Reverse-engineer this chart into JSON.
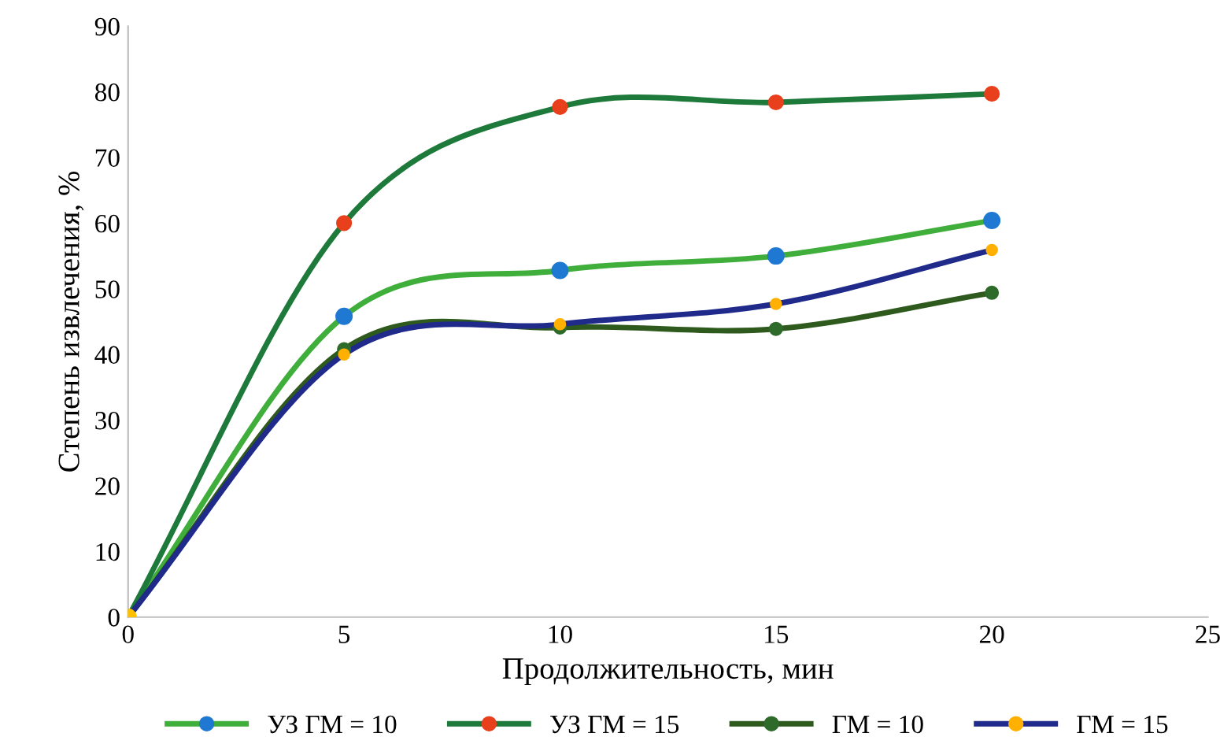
{
  "chart_data": {
    "type": "line",
    "xlabel": "Продолжительность, мин",
    "ylabel": "Степень извлечения, %",
    "x": [
      0,
      5,
      10,
      15,
      20
    ],
    "xlim": [
      0,
      25
    ],
    "xticks": [
      0,
      5,
      10,
      15,
      20,
      25
    ],
    "ylim": [
      0,
      90
    ],
    "yticks": [
      0,
      10,
      20,
      30,
      40,
      50,
      60,
      70,
      80,
      90
    ],
    "grid": false,
    "legend": "bottom",
    "marker": "circle",
    "line_style": "solid",
    "series": [
      {
        "name": "УЗ ГМ = 10",
        "color": "#3fae3a",
        "colors": [
          "#ffc000",
          "#1f78d1",
          "#1f78d1",
          "#1f78d1",
          "#1f78d1"
        ],
        "values": [
          0,
          45.8,
          52.8,
          55,
          60.4
        ]
      },
      {
        "name": "УЗ ГМ = 15",
        "color": "#1e7a3a",
        "colors": [
          "#ffc000",
          "#e8401c",
          "#e8401c",
          "#e8401c",
          "#e8401c"
        ],
        "values": [
          0,
          60,
          77.7,
          78.4,
          79.7
        ]
      },
      {
        "name": "ГМ = 10",
        "color": "#2f5a1e",
        "colors": [
          "#ffc000",
          "#2e6b2a",
          "#2e6b2a",
          "#2e6b2a",
          "#2e6b2a"
        ],
        "values": [
          0,
          40.8,
          44.1,
          43.9,
          49.4
        ]
      },
      {
        "name": "ГМ = 15",
        "color": "#1f2a8a",
        "colors": [
          "#ffc000",
          "#ffb000",
          "#ffb000",
          "#ffb000",
          "#ffb000"
        ],
        "values": [
          0,
          40,
          44.6,
          47.7,
          55.9
        ]
      }
    ]
  }
}
